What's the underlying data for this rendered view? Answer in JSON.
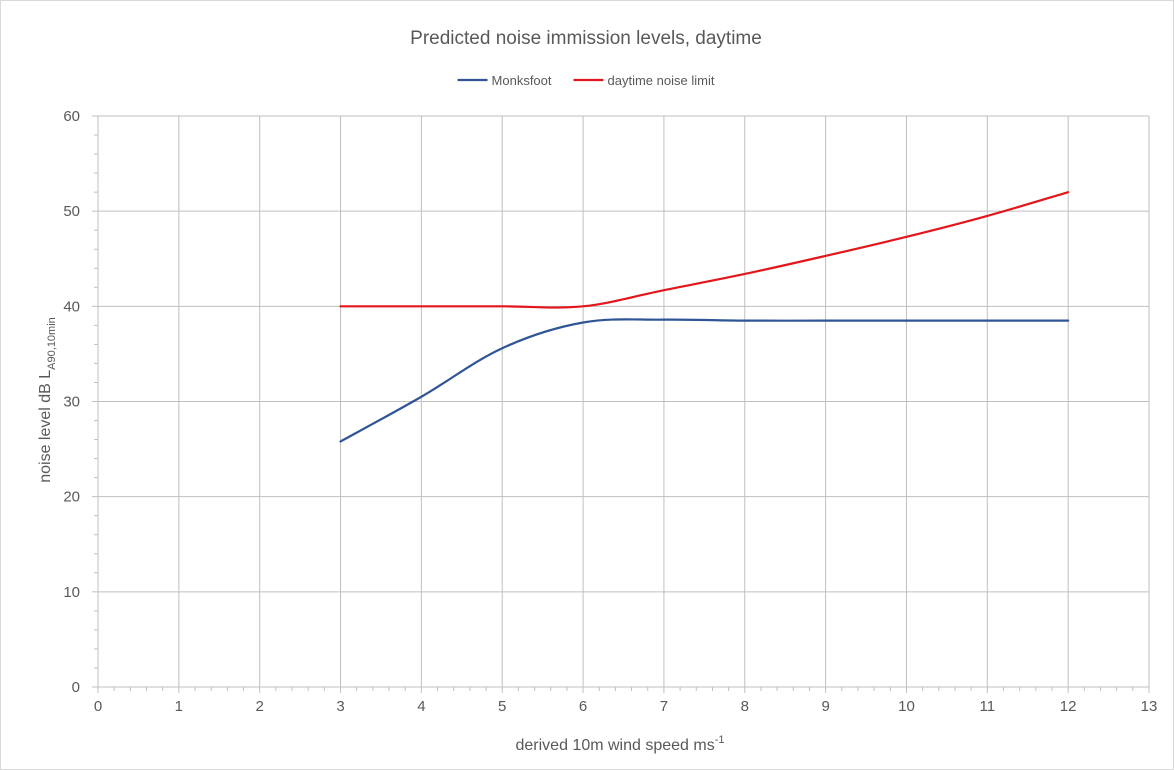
{
  "chart_data": {
    "type": "line",
    "title": "Predicted noise immission levels, daytime",
    "xlabel": {
      "main": "derived 10m wind speed ms",
      "sup": "-1"
    },
    "ylabel": {
      "main": "noise level dB L",
      "sub": "A90,10min"
    },
    "xlim": [
      0,
      13
    ],
    "ylim": [
      0,
      60
    ],
    "x_ticks": [
      0,
      1,
      2,
      3,
      4,
      5,
      6,
      7,
      8,
      9,
      10,
      11,
      12,
      13
    ],
    "y_ticks": [
      0,
      10,
      20,
      30,
      40,
      50,
      60
    ],
    "grid": true,
    "legend_position": "top",
    "series": [
      {
        "name": "Monksfoot",
        "color": "#2f5597",
        "x": [
          3,
          4,
          5,
          6,
          7,
          8,
          9,
          10,
          11,
          12
        ],
        "y": [
          25.8,
          30.5,
          35.6,
          38.3,
          38.6,
          38.5,
          38.5,
          38.5,
          38.5,
          38.5
        ]
      },
      {
        "name": "daytime noise limit",
        "color": "#e3161b",
        "x": [
          3,
          4,
          5,
          6,
          7,
          8,
          9,
          10,
          11,
          12
        ],
        "y": [
          40,
          40,
          40,
          40,
          41.7,
          43.4,
          45.3,
          47.3,
          49.5,
          52
        ]
      }
    ]
  }
}
